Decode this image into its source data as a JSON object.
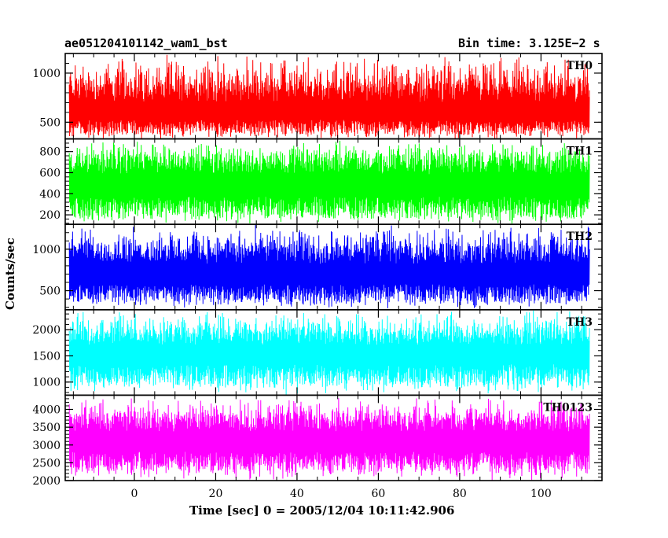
{
  "header": {
    "title": "ae051204101142_wam1_bst",
    "bin_time": "Bin time: 3.125E−2 s"
  },
  "chart_data": {
    "type": "line",
    "shared_x": true,
    "xlabel": "Time [sec] 0 = 2005/12/04 10:11:42.906",
    "ylabel": "Counts/sec",
    "xlim": [
      -17,
      115
    ],
    "xticks": [
      0,
      20,
      40,
      60,
      80,
      100
    ],
    "xtick_labels": [
      "0",
      "20",
      "40",
      "60",
      "80",
      "100"
    ],
    "x_data_range": [
      -16,
      112
    ],
    "bin_time_s": 0.03125,
    "series": [
      {
        "name": "TH0",
        "color": "#ff0000",
        "ylim": [
          330,
          1200
        ],
        "yticks": [
          500,
          1000
        ],
        "ytick_labels": [
          "500",
          "1000"
        ],
        "lower_envelope": [
          320,
          380
        ],
        "upper_envelope": [
          900,
          1200
        ],
        "mean": 600
      },
      {
        "name": "TH1",
        "color": "#00ff00",
        "ylim": [
          110,
          920
        ],
        "yticks": [
          200,
          400,
          600,
          800
        ],
        "ytick_labels": [
          "200",
          "400",
          "600",
          "800"
        ],
        "lower_envelope": [
          110,
          170
        ],
        "upper_envelope": [
          780,
          920
        ],
        "mean": 480
      },
      {
        "name": "TH2",
        "color": "#0000ff",
        "ylim": [
          270,
          1300
        ],
        "yticks": [
          500,
          1000
        ],
        "ytick_labels": [
          "500",
          "1000"
        ],
        "lower_envelope": [
          280,
          360
        ],
        "upper_envelope": [
          1050,
          1300
        ],
        "mean": 700
      },
      {
        "name": "TH3",
        "color": "#00ffff",
        "ylim": [
          750,
          2380
        ],
        "yticks": [
          1000,
          1500,
          2000
        ],
        "ytick_labels": [
          "1000",
          "1500",
          "2000"
        ],
        "lower_envelope": [
          750,
          950
        ],
        "upper_envelope": [
          2000,
          2380
        ],
        "mean": 1550
      },
      {
        "name": "TH0123",
        "color": "#ff00ff",
        "ylim": [
          2000,
          4400
        ],
        "yticks": [
          2000,
          2500,
          3000,
          3500,
          4000
        ],
        "ytick_labels": [
          "2000",
          "2500",
          "3000",
          "3500",
          "4000"
        ],
        "lower_envelope": [
          2000,
          2300
        ],
        "upper_envelope": [
          3900,
          4350
        ],
        "mean": 3100
      }
    ]
  }
}
